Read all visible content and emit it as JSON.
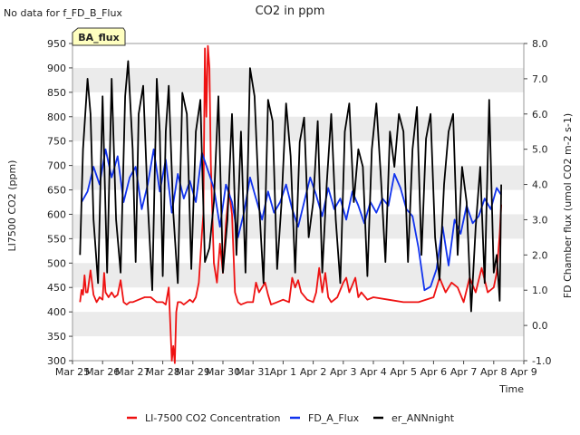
{
  "header": {
    "no_data_note": "No data for f_FD_B_Flux",
    "badge": "BA_flux"
  },
  "chart_data": {
    "type": "line",
    "title": "CO2 in ppm",
    "xlabel": "Time",
    "ylabel": "LI7500 CO2 (ppm)",
    "y2label": "FD Chamber flux (umol CO2 m-2 s-1)",
    "xlim": [
      0,
      15
    ],
    "ylim": [
      300,
      950
    ],
    "y2lim": [
      -1.0,
      8.0
    ],
    "grid": "horizontal alternating bands",
    "legend_position": "bottom",
    "x_ticks": [
      {
        "x": 0,
        "label": "Mar 25"
      },
      {
        "x": 1,
        "label": "Mar 26"
      },
      {
        "x": 2,
        "label": "Mar 27"
      },
      {
        "x": 3,
        "label": "Mar 28"
      },
      {
        "x": 4,
        "label": "Mar 29"
      },
      {
        "x": 5,
        "label": "Mar 30"
      },
      {
        "x": 6,
        "label": "Mar 31"
      },
      {
        "x": 7,
        "label": "Apr 1"
      },
      {
        "x": 8,
        "label": "Apr 2"
      },
      {
        "x": 9,
        "label": "Apr 3"
      },
      {
        "x": 10,
        "label": "Apr 4"
      },
      {
        "x": 11,
        "label": "Apr 5"
      },
      {
        "x": 12,
        "label": "Apr 6"
      },
      {
        "x": 13,
        "label": "Apr 7"
      },
      {
        "x": 14,
        "label": "Apr 8"
      },
      {
        "x": 15,
        "label": "Apr 9"
      }
    ],
    "y_ticks": [
      300,
      350,
      400,
      450,
      500,
      550,
      600,
      650,
      700,
      750,
      800,
      850,
      900,
      950
    ],
    "y2_ticks": [
      "-1.0",
      "0.0",
      "1.0",
      "2.0",
      "3.0",
      "4.0",
      "5.0",
      "6.0",
      "7.0",
      "8.0"
    ],
    "series": [
      {
        "name": "LI-7500 CO2 Concentration",
        "axis": "left",
        "color": "#ee1111",
        "x": [
          0.25,
          0.3,
          0.35,
          0.4,
          0.45,
          0.5,
          0.6,
          0.7,
          0.8,
          0.9,
          1.0,
          1.05,
          1.1,
          1.2,
          1.3,
          1.4,
          1.5,
          1.6,
          1.7,
          1.8,
          1.9,
          2.0,
          2.2,
          2.4,
          2.6,
          2.8,
          3.0,
          3.1,
          3.2,
          3.3,
          3.35,
          3.4,
          3.45,
          3.5,
          3.6,
          3.7,
          3.8,
          3.9,
          4.0,
          4.1,
          4.2,
          4.3,
          4.35,
          4.4,
          4.45,
          4.5,
          4.55,
          4.6,
          4.7,
          4.8,
          4.9,
          5.0,
          5.1,
          5.2,
          5.3,
          5.4,
          5.5,
          5.6,
          5.8,
          6.0,
          6.1,
          6.2,
          6.3,
          6.4,
          6.5,
          6.6,
          6.8,
          7.0,
          7.2,
          7.3,
          7.4,
          7.5,
          7.6,
          7.8,
          8.0,
          8.1,
          8.2,
          8.3,
          8.4,
          8.5,
          8.6,
          8.8,
          9.0,
          9.1,
          9.2,
          9.3,
          9.4,
          9.5,
          9.6,
          9.8,
          10.0,
          10.5,
          11.0,
          11.5,
          12.0,
          12.2,
          12.4,
          12.6,
          12.8,
          13.0,
          13.2,
          13.4,
          13.6,
          13.8,
          14.0,
          14.1,
          14.2,
          14.25
        ],
        "values": [
          420,
          445,
          435,
          475,
          440,
          440,
          485,
          435,
          420,
          430,
          425,
          480,
          440,
          430,
          440,
          430,
          435,
          465,
          420,
          415,
          420,
          420,
          425,
          430,
          430,
          420,
          420,
          415,
          450,
          300,
          330,
          295,
          400,
          420,
          420,
          415,
          420,
          425,
          420,
          430,
          460,
          560,
          600,
          940,
          800,
          945,
          900,
          700,
          500,
          460,
          540,
          480,
          580,
          650,
          600,
          440,
          420,
          415,
          420,
          420,
          460,
          440,
          450,
          460,
          435,
          415,
          420,
          425,
          420,
          470,
          450,
          465,
          440,
          425,
          420,
          440,
          490,
          440,
          480,
          430,
          420,
          430,
          460,
          470,
          440,
          455,
          470,
          430,
          440,
          425,
          430,
          425,
          420,
          420,
          430,
          470,
          440,
          460,
          450,
          420,
          470,
          440,
          490,
          440,
          450,
          480,
          560,
          620
        ]
      },
      {
        "name": "FD_A_Flux",
        "axis": "right",
        "color": "#1133ee",
        "x": [
          0.3,
          0.5,
          0.7,
          0.9,
          1.1,
          1.3,
          1.5,
          1.7,
          1.9,
          2.1,
          2.3,
          2.5,
          2.7,
          2.9,
          3.1,
          3.3,
          3.5,
          3.7,
          3.9,
          4.1,
          4.3,
          4.5,
          4.7,
          4.9,
          5.1,
          5.3,
          5.5,
          5.7,
          5.9,
          6.1,
          6.3,
          6.5,
          6.7,
          6.9,
          7.1,
          7.3,
          7.5,
          7.7,
          7.9,
          8.1,
          8.3,
          8.5,
          8.7,
          8.9,
          9.1,
          9.3,
          9.5,
          9.7,
          9.9,
          10.1,
          10.3,
          10.5,
          10.7,
          10.9,
          11.1,
          11.3,
          11.5,
          11.7,
          11.9,
          12.1,
          12.3,
          12.5,
          12.7,
          12.9,
          13.1,
          13.3,
          13.5,
          13.7,
          13.9,
          14.1,
          14.25
        ],
        "values": [
          3.5,
          3.8,
          4.5,
          4.0,
          5.0,
          4.2,
          4.8,
          3.5,
          4.2,
          4.5,
          3.3,
          4.0,
          5.0,
          3.8,
          4.7,
          3.2,
          4.3,
          3.6,
          4.1,
          3.5,
          4.9,
          4.4,
          3.9,
          2.8,
          4.0,
          3.5,
          2.5,
          3.2,
          4.2,
          3.6,
          3.0,
          3.8,
          3.2,
          3.5,
          4.0,
          3.3,
          2.8,
          3.5,
          4.2,
          3.7,
          3.1,
          3.9,
          3.3,
          3.6,
          3.0,
          3.8,
          3.4,
          2.9,
          3.5,
          3.2,
          3.6,
          3.4,
          4.3,
          3.9,
          3.3,
          3.1,
          2.2,
          1.0,
          1.1,
          1.6,
          2.8,
          1.7,
          3.0,
          2.6,
          3.4,
          2.9,
          3.1,
          3.6,
          3.3,
          3.9,
          3.7
        ]
      },
      {
        "name": "er_ANNnight",
        "axis": "right",
        "color": "#000000",
        "x": [
          0.25,
          0.35,
          0.5,
          0.6,
          0.7,
          0.85,
          1.0,
          1.15,
          1.3,
          1.45,
          1.6,
          1.75,
          1.85,
          2.0,
          2.1,
          2.2,
          2.35,
          2.5,
          2.65,
          2.8,
          2.9,
          3.0,
          3.1,
          3.2,
          3.35,
          3.5,
          3.65,
          3.8,
          3.95,
          4.1,
          4.25,
          4.4,
          4.55,
          4.7,
          4.85,
          5.0,
          5.15,
          5.3,
          5.45,
          5.6,
          5.75,
          5.9,
          6.05,
          6.2,
          6.35,
          6.5,
          6.65,
          6.8,
          6.95,
          7.1,
          7.25,
          7.4,
          7.55,
          7.7,
          7.85,
          8.0,
          8.15,
          8.3,
          8.45,
          8.6,
          8.75,
          8.9,
          9.05,
          9.2,
          9.35,
          9.5,
          9.65,
          9.8,
          9.95,
          10.1,
          10.25,
          10.4,
          10.55,
          10.7,
          10.85,
          11.0,
          11.15,
          11.3,
          11.45,
          11.6,
          11.75,
          11.9,
          12.05,
          12.2,
          12.35,
          12.5,
          12.65,
          12.8,
          12.95,
          13.1,
          13.25,
          13.4,
          13.55,
          13.7,
          13.85,
          14.0,
          14.1,
          14.2,
          14.25
        ],
        "values": [
          2.0,
          5.0,
          7.0,
          6.0,
          3.0,
          1.2,
          6.5,
          1.5,
          7.0,
          3.0,
          1.5,
          6.5,
          7.5,
          5.0,
          1.8,
          6.0,
          6.8,
          3.5,
          1.0,
          7.0,
          5.5,
          1.4,
          5.5,
          6.8,
          3.2,
          1.2,
          6.6,
          6.0,
          1.6,
          5.5,
          6.4,
          1.8,
          2.2,
          3.5,
          6.5,
          1.5,
          3.0,
          6.0,
          2.0,
          5.5,
          1.5,
          7.3,
          6.5,
          3.5,
          1.2,
          6.4,
          5.8,
          1.6,
          3.5,
          6.3,
          4.8,
          1.5,
          5.2,
          5.9,
          2.5,
          3.5,
          5.8,
          1.5,
          4.0,
          6.0,
          3.0,
          1.2,
          5.5,
          6.3,
          3.5,
          5.0,
          4.5,
          1.4,
          5.0,
          6.3,
          4.2,
          1.8,
          5.5,
          4.5,
          6.0,
          5.5,
          1.8,
          5.0,
          6.2,
          2.0,
          5.3,
          6.0,
          2.5,
          1.3,
          4.0,
          5.5,
          6.0,
          2.0,
          4.5,
          3.5,
          0.4,
          2.8,
          4.5,
          1.2,
          6.4,
          1.5,
          2.0,
          0.7,
          4.0
        ]
      }
    ]
  }
}
